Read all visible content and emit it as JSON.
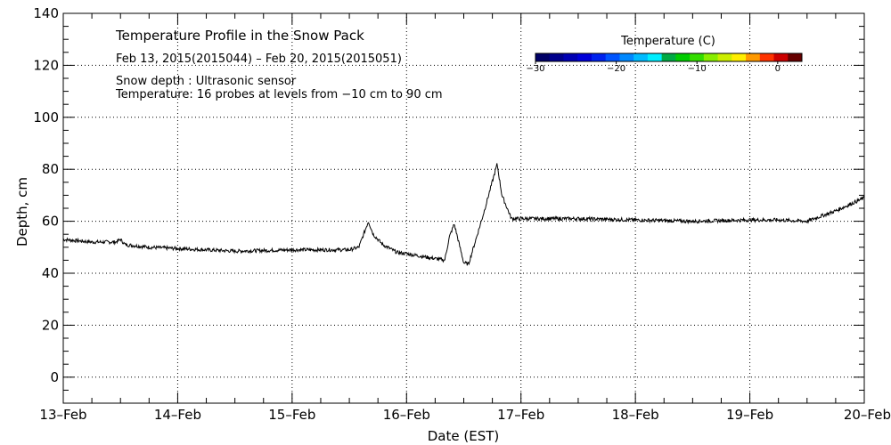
{
  "chart_data": {
    "type": "line",
    "title": "Temperature Profile in the Snow Pack",
    "subtitle": "Feb 13, 2015(2015044) – Feb 20, 2015(2015051)",
    "annotations": [
      "Snow depth : Ultrasonic sensor",
      "Temperature: 16 probes at levels from −10 cm to 90 cm"
    ],
    "xlabel": "Date (EST)",
    "ylabel": "Depth, cm",
    "x_unit": "days",
    "xlim_labels": [
      "13-Feb",
      "20-Feb"
    ],
    "x_ticks": [
      "13–Feb",
      "14–Feb",
      "15–Feb",
      "16–Feb",
      "17–Feb",
      "18–Feb",
      "19–Feb",
      "20–Feb"
    ],
    "ylim": [
      -10,
      140
    ],
    "y_ticks": [
      0,
      20,
      40,
      60,
      80,
      100,
      120,
      140
    ],
    "y_tick_labels": [
      "0",
      "20",
      "40",
      "60",
      "80",
      "100",
      "120",
      "140"
    ],
    "grid": true,
    "series": [
      {
        "name": "",
        "x": [
          "13-Feb 00:00",
          "13-Feb 06:00",
          "13-Feb 11:00",
          "13-Feb 12:00",
          "13-Feb 13:00",
          "13-Feb 18:00",
          "14-Feb 00:00",
          "14-Feb 12:00",
          "15-Feb 00:00",
          "15-Feb 12:00",
          "15-Feb 14:00",
          "15-Feb 16:00",
          "15-Feb 17:00",
          "15-Feb 19:00",
          "15-Feb 22:00",
          "16-Feb 00:00",
          "16-Feb 08:00",
          "16-Feb 09:00",
          "16-Feb 10:00",
          "16-Feb 12:00",
          "16-Feb 13:00",
          "16-Feb 16:00",
          "16-Feb 19:00",
          "16-Feb 20:00",
          "16-Feb 22:00",
          "17-Feb 00:00",
          "17-Feb 12:00",
          "18-Feb 00:00",
          "18-Feb 12:00",
          "19-Feb 00:00",
          "19-Feb 06:00",
          "19-Feb 12:00",
          "19-Feb 18:00",
          "20-Feb 00:00"
        ],
        "y": [
          53,
          52,
          52,
          53,
          51,
          50,
          49.5,
          48.5,
          49,
          49,
          50,
          60,
          55,
          51,
          48,
          47.5,
          45,
          54,
          59,
          44,
          43.5,
          62,
          82,
          70,
          61,
          61,
          61,
          60.5,
          60,
          60.5,
          60.5,
          60,
          64,
          69
        ]
      }
    ]
  },
  "colorbar": {
    "title": "Temperature (C)",
    "tick_labels": [
      "−30",
      "−20",
      "−10",
      "0"
    ],
    "tick_values": [
      -30,
      -20,
      -10,
      0
    ],
    "range": [
      -30,
      3
    ],
    "colors": [
      "#000066",
      "#00008c",
      "#0000b3",
      "#0000d9",
      "#0022ee",
      "#0055ff",
      "#0088ff",
      "#00bbff",
      "#00eeff",
      "#00aa44",
      "#00cc00",
      "#33dd00",
      "#88ee00",
      "#ccee00",
      "#ffee00",
      "#ff9900",
      "#ff3300",
      "#cc0000",
      "#660000"
    ]
  }
}
